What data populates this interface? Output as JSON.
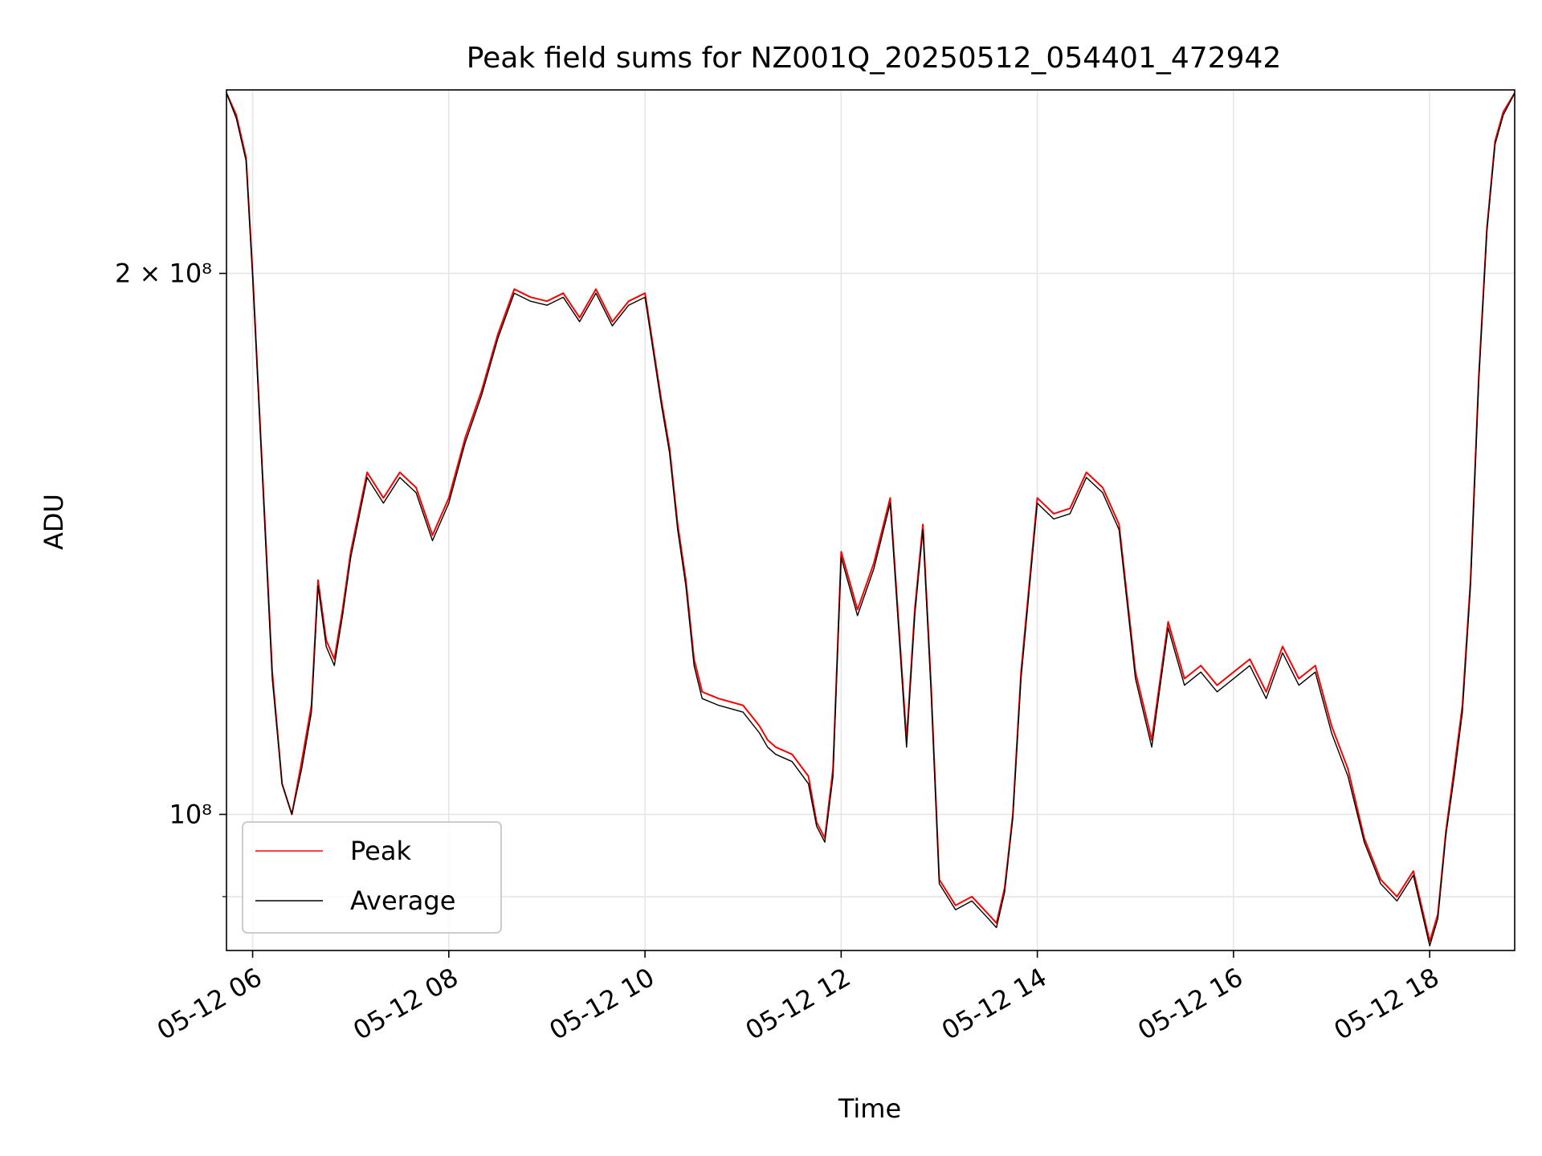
{
  "chart_data": {
    "type": "line",
    "title": "Peak field sums for NZ001Q_20250512_054401_472942",
    "xlabel": "Time",
    "ylabel": "ADU",
    "x_scale": "time",
    "y_scale": "log",
    "xlim": [
      "05-12 05:44",
      "05-12 18:52"
    ],
    "ylim": [
      84000000,
      253000000
    ],
    "x_ticks": [
      "05-12 06",
      "05-12 08",
      "05-12 10",
      "05-12 12",
      "05-12 14",
      "05-12 16",
      "05-12 18"
    ],
    "y_ticks": [
      {
        "value": 100000000,
        "label": "10⁸"
      },
      {
        "value": 200000000,
        "label": "2 × 10⁸"
      }
    ],
    "y_minor_ticks": [
      90000000
    ],
    "grid": true,
    "legend_position": "lower-left",
    "series": [
      {
        "name": "Peak",
        "color": "#ff0000",
        "x": [
          "05:44",
          "05:50",
          "05:56",
          "06:00",
          "06:06",
          "06:12",
          "06:18",
          "06:24",
          "06:30",
          "06:36",
          "06:40",
          "06:45",
          "06:50",
          "06:55",
          "07:00",
          "07:10",
          "07:20",
          "07:30",
          "07:40",
          "07:50",
          "08:00",
          "08:10",
          "08:20",
          "08:30",
          "08:40",
          "08:50",
          "09:00",
          "09:10",
          "09:20",
          "09:30",
          "09:40",
          "09:50",
          "10:00",
          "10:10",
          "10:15",
          "10:20",
          "10:25",
          "10:30",
          "10:35",
          "10:45",
          "11:00",
          "11:10",
          "11:15",
          "11:20",
          "11:30",
          "11:40",
          "11:45",
          "11:50",
          "11:55",
          "12:00",
          "12:10",
          "12:20",
          "12:30",
          "12:40",
          "12:45",
          "12:50",
          "12:55",
          "13:00",
          "13:10",
          "13:20",
          "13:30",
          "13:35",
          "13:40",
          "13:45",
          "13:50",
          "14:00",
          "14:10",
          "14:20",
          "14:30",
          "14:40",
          "14:50",
          "15:00",
          "15:10",
          "15:20",
          "15:30",
          "15:40",
          "15:50",
          "16:00",
          "16:10",
          "16:20",
          "16:30",
          "16:40",
          "16:50",
          "17:00",
          "17:10",
          "17:20",
          "17:30",
          "17:40",
          "17:50",
          "18:00",
          "18:05",
          "18:10",
          "18:15",
          "18:20",
          "18:25",
          "18:30",
          "18:35",
          "18:40",
          "18:45",
          "18:52"
        ],
        "y": [
          252000000,
          245000000,
          232000000,
          200000000,
          155000000,
          120000000,
          104000000,
          100000000,
          107000000,
          115000000,
          135000000,
          125000000,
          122000000,
          130000000,
          140000000,
          155000000,
          150000000,
          155000000,
          152000000,
          143000000,
          150000000,
          162000000,
          172000000,
          185000000,
          196000000,
          194000000,
          193000000,
          195000000,
          189000000,
          196000000,
          188000000,
          193000000,
          195000000,
          170000000,
          160000000,
          145000000,
          135000000,
          122000000,
          117000000,
          116000000,
          115000000,
          112000000,
          110000000,
          109000000,
          108000000,
          105000000,
          99000000,
          97000000,
          106000000,
          140000000,
          130000000,
          138000000,
          150000000,
          110000000,
          130000000,
          145000000,
          118000000,
          92000000,
          89000000,
          90000000,
          88000000,
          87000000,
          91000000,
          100000000,
          120000000,
          150000000,
          147000000,
          148000000,
          155000000,
          152000000,
          145000000,
          120000000,
          110000000,
          128000000,
          119000000,
          121000000,
          118000000,
          120000000,
          122000000,
          117000000,
          124000000,
          119000000,
          121000000,
          112000000,
          106000000,
          97000000,
          92000000,
          90000000,
          93000000,
          85000000,
          88000000,
          98000000,
          106000000,
          115000000,
          135000000,
          175000000,
          212000000,
          237000000,
          246000000,
          252000000
        ]
      },
      {
        "name": "Average",
        "color": "#000000",
        "x": [
          "05:44",
          "05:50",
          "05:56",
          "06:00",
          "06:06",
          "06:12",
          "06:18",
          "06:24",
          "06:30",
          "06:36",
          "06:40",
          "06:45",
          "06:50",
          "06:55",
          "07:00",
          "07:10",
          "07:20",
          "07:30",
          "07:40",
          "07:50",
          "08:00",
          "08:10",
          "08:20",
          "08:30",
          "08:40",
          "08:50",
          "09:00",
          "09:10",
          "09:20",
          "09:30",
          "09:40",
          "09:50",
          "10:00",
          "10:10",
          "10:15",
          "10:20",
          "10:25",
          "10:30",
          "10:35",
          "10:45",
          "11:00",
          "11:10",
          "11:15",
          "11:20",
          "11:30",
          "11:40",
          "11:45",
          "11:50",
          "11:55",
          "12:00",
          "12:10",
          "12:20",
          "12:30",
          "12:40",
          "12:45",
          "12:50",
          "12:55",
          "13:00",
          "13:10",
          "13:20",
          "13:30",
          "13:35",
          "13:40",
          "13:45",
          "13:50",
          "14:00",
          "14:10",
          "14:20",
          "14:30",
          "14:40",
          "14:50",
          "15:00",
          "15:10",
          "15:20",
          "15:30",
          "15:40",
          "15:50",
          "16:00",
          "16:10",
          "16:20",
          "16:30",
          "16:40",
          "16:50",
          "17:00",
          "17:10",
          "17:20",
          "17:30",
          "17:40",
          "17:50",
          "18:00",
          "18:05",
          "18:10",
          "18:15",
          "18:20",
          "18:25",
          "18:30",
          "18:35",
          "18:40",
          "18:45",
          "18:52"
        ],
        "y": [
          252000000,
          244000000,
          231000000,
          199000000,
          154000000,
          119000000,
          104000000,
          100000000,
          106000000,
          114000000,
          134000000,
          124000000,
          121000000,
          129000000,
          139000000,
          154000000,
          149000000,
          154000000,
          151000000,
          142000000,
          149000000,
          161000000,
          171000000,
          184000000,
          195000000,
          193000000,
          192000000,
          194000000,
          188000000,
          195000000,
          187000000,
          192000000,
          194000000,
          169000000,
          159000000,
          144000000,
          134000000,
          121000000,
          116000000,
          115000000,
          114000000,
          111000000,
          109000000,
          108000000,
          107000000,
          104000000,
          98500000,
          96500000,
          105000000,
          139000000,
          129000000,
          137000000,
          149000000,
          109000000,
          129000000,
          144000000,
          117000000,
          91500000,
          88500000,
          89500000,
          87500000,
          86500000,
          90500000,
          99500000,
          119000000,
          149000000,
          146000000,
          147000000,
          154000000,
          151000000,
          144000000,
          119000000,
          109000000,
          127000000,
          118000000,
          120000000,
          117000000,
          119000000,
          121000000,
          116000000,
          123000000,
          118000000,
          120000000,
          111000000,
          105000000,
          96500000,
          91500000,
          89500000,
          92500000,
          84500000,
          87500000,
          97500000,
          105000000,
          114000000,
          134000000,
          174000000,
          211000000,
          236000000,
          245000000,
          252000000
        ]
      }
    ],
    "legend": [
      {
        "name": "Peak",
        "color": "#ff0000"
      },
      {
        "name": "Average",
        "color": "#000000"
      }
    ]
  }
}
